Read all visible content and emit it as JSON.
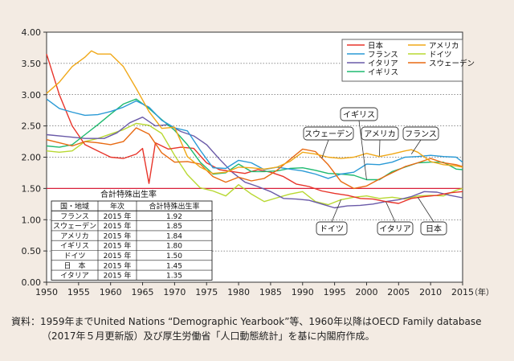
{
  "chart_data": {
    "type": "line",
    "ylim": [
      0,
      4
    ],
    "xlim": [
      1950,
      2015
    ],
    "xunit": "（年）",
    "yticks": [
      "0.00",
      "0.50",
      "1.00",
      "1.50",
      "2.00",
      "2.50",
      "3.00",
      "3.50",
      "4.00"
    ],
    "xticks": [
      "1950",
      "1955",
      "1960",
      "1965",
      "1970",
      "1975",
      "1980",
      "1985",
      "1990",
      "1995",
      "2000",
      "2005",
      "2010",
      "2015"
    ],
    "replacement_level": 1.5,
    "series": [
      {
        "key": "japan",
        "name": "日本",
        "color": "#e8342a",
        "points": [
          [
            1950,
            3.65
          ],
          [
            1952,
            3.0
          ],
          [
            1954,
            2.5
          ],
          [
            1956,
            2.2
          ],
          [
            1958,
            2.1
          ],
          [
            1960,
            2.0
          ],
          [
            1962,
            1.98
          ],
          [
            1964,
            2.05
          ],
          [
            1965,
            2.14
          ],
          [
            1966,
            1.58
          ],
          [
            1967,
            2.23
          ],
          [
            1969,
            2.13
          ],
          [
            1971,
            2.16
          ],
          [
            1973,
            2.14
          ],
          [
            1975,
            1.91
          ],
          [
            1977,
            1.8
          ],
          [
            1979,
            1.77
          ],
          [
            1981,
            1.74
          ],
          [
            1983,
            1.8
          ],
          [
            1985,
            1.76
          ],
          [
            1987,
            1.69
          ],
          [
            1989,
            1.57
          ],
          [
            1991,
            1.53
          ],
          [
            1993,
            1.46
          ],
          [
            1995,
            1.42
          ],
          [
            1997,
            1.39
          ],
          [
            1999,
            1.34
          ],
          [
            2001,
            1.33
          ],
          [
            2003,
            1.29
          ],
          [
            2005,
            1.26
          ],
          [
            2007,
            1.34
          ],
          [
            2009,
            1.37
          ],
          [
            2011,
            1.39
          ],
          [
            2013,
            1.43
          ],
          [
            2015,
            1.45
          ]
        ]
      },
      {
        "key": "france",
        "name": "フランス",
        "color": "#2a9ad6",
        "points": [
          [
            1950,
            2.93
          ],
          [
            1952,
            2.78
          ],
          [
            1954,
            2.72
          ],
          [
            1956,
            2.67
          ],
          [
            1958,
            2.68
          ],
          [
            1960,
            2.73
          ],
          [
            1962,
            2.8
          ],
          [
            1964,
            2.9
          ],
          [
            1966,
            2.8
          ],
          [
            1968,
            2.59
          ],
          [
            1970,
            2.47
          ],
          [
            1972,
            2.42
          ],
          [
            1974,
            2.11
          ],
          [
            1976,
            1.83
          ],
          [
            1978,
            1.82
          ],
          [
            1980,
            1.95
          ],
          [
            1982,
            1.91
          ],
          [
            1984,
            1.8
          ],
          [
            1986,
            1.84
          ],
          [
            1988,
            1.81
          ],
          [
            1990,
            1.78
          ],
          [
            1992,
            1.73
          ],
          [
            1994,
            1.66
          ],
          [
            1996,
            1.73
          ],
          [
            1998,
            1.76
          ],
          [
            2000,
            1.89
          ],
          [
            2002,
            1.88
          ],
          [
            2004,
            1.92
          ],
          [
            2006,
            2.0
          ],
          [
            2008,
            2.01
          ],
          [
            2010,
            2.03
          ],
          [
            2012,
            2.01
          ],
          [
            2014,
            2.0
          ],
          [
            2015,
            1.92
          ]
        ]
      },
      {
        "key": "italy",
        "name": "イタリア",
        "color": "#6a5aa8",
        "points": [
          [
            1950,
            2.36
          ],
          [
            1953,
            2.33
          ],
          [
            1956,
            2.3
          ],
          [
            1959,
            2.3
          ],
          [
            1961,
            2.39
          ],
          [
            1963,
            2.55
          ],
          [
            1965,
            2.64
          ],
          [
            1967,
            2.5
          ],
          [
            1969,
            2.52
          ],
          [
            1971,
            2.41
          ],
          [
            1973,
            2.34
          ],
          [
            1975,
            2.2
          ],
          [
            1977,
            1.97
          ],
          [
            1979,
            1.76
          ],
          [
            1981,
            1.6
          ],
          [
            1983,
            1.53
          ],
          [
            1985,
            1.45
          ],
          [
            1987,
            1.34
          ],
          [
            1989,
            1.33
          ],
          [
            1991,
            1.31
          ],
          [
            1993,
            1.25
          ],
          [
            1995,
            1.19
          ],
          [
            1997,
            1.22
          ],
          [
            1999,
            1.23
          ],
          [
            2001,
            1.25
          ],
          [
            2003,
            1.29
          ],
          [
            2005,
            1.32
          ],
          [
            2007,
            1.37
          ],
          [
            2009,
            1.45
          ],
          [
            2011,
            1.44
          ],
          [
            2013,
            1.39
          ],
          [
            2015,
            1.35
          ]
        ]
      },
      {
        "key": "sweden",
        "name": "スウェーデン",
        "color": "#e86a12",
        "points": [
          [
            1950,
            2.28
          ],
          [
            1952,
            2.23
          ],
          [
            1954,
            2.18
          ],
          [
            1956,
            2.25
          ],
          [
            1958,
            2.23
          ],
          [
            1960,
            2.2
          ],
          [
            1962,
            2.25
          ],
          [
            1964,
            2.47
          ],
          [
            1966,
            2.37
          ],
          [
            1968,
            2.07
          ],
          [
            1970,
            1.92
          ],
          [
            1972,
            1.93
          ],
          [
            1974,
            1.89
          ],
          [
            1976,
            1.69
          ],
          [
            1978,
            1.6
          ],
          [
            1980,
            1.68
          ],
          [
            1982,
            1.62
          ],
          [
            1984,
            1.66
          ],
          [
            1986,
            1.79
          ],
          [
            1988,
            1.96
          ],
          [
            1990,
            2.13
          ],
          [
            1992,
            2.09
          ],
          [
            1994,
            1.88
          ],
          [
            1996,
            1.61
          ],
          [
            1998,
            1.5
          ],
          [
            2000,
            1.54
          ],
          [
            2002,
            1.65
          ],
          [
            2004,
            1.75
          ],
          [
            2006,
            1.85
          ],
          [
            2008,
            1.91
          ],
          [
            2010,
            1.98
          ],
          [
            2012,
            1.91
          ],
          [
            2014,
            1.88
          ],
          [
            2015,
            1.85
          ]
        ]
      },
      {
        "key": "usa",
        "name": "アメリカ",
        "color": "#f0a818",
        "points": [
          [
            1950,
            3.02
          ],
          [
            1952,
            3.2
          ],
          [
            1954,
            3.45
          ],
          [
            1956,
            3.6
          ],
          [
            1957,
            3.7
          ],
          [
            1958,
            3.65
          ],
          [
            1960,
            3.65
          ],
          [
            1962,
            3.45
          ],
          [
            1964,
            3.1
          ],
          [
            1966,
            2.73
          ],
          [
            1968,
            2.46
          ],
          [
            1970,
            2.48
          ],
          [
            1972,
            2.01
          ],
          [
            1974,
            1.84
          ],
          [
            1976,
            1.74
          ],
          [
            1978,
            1.76
          ],
          [
            1980,
            1.84
          ],
          [
            1982,
            1.83
          ],
          [
            1984,
            1.81
          ],
          [
            1986,
            1.84
          ],
          [
            1988,
            1.93
          ],
          [
            1990,
            2.08
          ],
          [
            1992,
            2.05
          ],
          [
            1994,
            2.0
          ],
          [
            1996,
            1.98
          ],
          [
            1998,
            2.0
          ],
          [
            2000,
            2.06
          ],
          [
            2002,
            2.01
          ],
          [
            2004,
            2.05
          ],
          [
            2006,
            2.1
          ],
          [
            2007,
            2.12
          ],
          [
            2008,
            2.08
          ],
          [
            2010,
            1.93
          ],
          [
            2012,
            1.88
          ],
          [
            2014,
            1.86
          ],
          [
            2015,
            1.84
          ]
        ]
      },
      {
        "key": "germany",
        "name": "ドイツ",
        "color": "#b8d832",
        "points": [
          [
            1950,
            2.1
          ],
          [
            1952,
            2.08
          ],
          [
            1954,
            2.1
          ],
          [
            1956,
            2.25
          ],
          [
            1958,
            2.3
          ],
          [
            1960,
            2.37
          ],
          [
            1962,
            2.44
          ],
          [
            1964,
            2.54
          ],
          [
            1966,
            2.51
          ],
          [
            1968,
            2.38
          ],
          [
            1970,
            2.03
          ],
          [
            1972,
            1.72
          ],
          [
            1974,
            1.51
          ],
          [
            1976,
            1.46
          ],
          [
            1978,
            1.38
          ],
          [
            1980,
            1.56
          ],
          [
            1982,
            1.41
          ],
          [
            1984,
            1.29
          ],
          [
            1986,
            1.35
          ],
          [
            1988,
            1.41
          ],
          [
            1990,
            1.45
          ],
          [
            1992,
            1.29
          ],
          [
            1994,
            1.24
          ],
          [
            1996,
            1.32
          ],
          [
            1998,
            1.36
          ],
          [
            2000,
            1.38
          ],
          [
            2002,
            1.34
          ],
          [
            2004,
            1.36
          ],
          [
            2006,
            1.33
          ],
          [
            2008,
            1.38
          ],
          [
            2010,
            1.39
          ],
          [
            2012,
            1.38
          ],
          [
            2014,
            1.47
          ],
          [
            2015,
            1.5
          ]
        ]
      },
      {
        "key": "uk",
        "name": "イギリス",
        "color": "#1fba70",
        "points": [
          [
            1950,
            2.18
          ],
          [
            1952,
            2.16
          ],
          [
            1954,
            2.2
          ],
          [
            1956,
            2.36
          ],
          [
            1958,
            2.52
          ],
          [
            1960,
            2.69
          ],
          [
            1962,
            2.85
          ],
          [
            1964,
            2.93
          ],
          [
            1966,
            2.78
          ],
          [
            1968,
            2.6
          ],
          [
            1970,
            2.43
          ],
          [
            1972,
            2.2
          ],
          [
            1974,
            1.92
          ],
          [
            1976,
            1.73
          ],
          [
            1978,
            1.75
          ],
          [
            1980,
            1.89
          ],
          [
            1982,
            1.77
          ],
          [
            1984,
            1.77
          ],
          [
            1986,
            1.78
          ],
          [
            1988,
            1.82
          ],
          [
            1990,
            1.83
          ],
          [
            1992,
            1.79
          ],
          [
            1994,
            1.74
          ],
          [
            1996,
            1.73
          ],
          [
            1998,
            1.71
          ],
          [
            2000,
            1.64
          ],
          [
            2002,
            1.64
          ],
          [
            2004,
            1.77
          ],
          [
            2006,
            1.84
          ],
          [
            2008,
            1.91
          ],
          [
            2010,
            1.92
          ],
          [
            2012,
            1.92
          ],
          [
            2014,
            1.81
          ],
          [
            2015,
            1.8
          ]
        ]
      }
    ],
    "callouts": [
      {
        "key": "uk",
        "text": "イギリス",
        "pt": [
          2000,
          1.64
        ]
      },
      {
        "key": "sweden",
        "text": "スウェーデン",
        "pt": [
          1993,
          1.98
        ]
      },
      {
        "key": "usa",
        "text": "アメリカ",
        "pt": [
          2002,
          2.02
        ]
      },
      {
        "key": "france",
        "text": "フランス",
        "pt": [
          2007,
          2.05
        ]
      },
      {
        "key": "germany",
        "text": "ドイツ",
        "pt": [
          1996,
          1.32
        ]
      },
      {
        "key": "italy",
        "text": "イタリア",
        "pt": [
          2003,
          1.29
        ]
      },
      {
        "key": "japan",
        "text": "日本",
        "pt": [
          2008,
          1.36
        ]
      }
    ],
    "table": {
      "title": "合計特殊出生率",
      "headers": [
        "国・地域",
        "年次",
        "合計特殊出生率"
      ],
      "rows": [
        [
          "フランス",
          "2015 年",
          "1.92"
        ],
        [
          "スウェーデン",
          "2015 年",
          "1.85"
        ],
        [
          "アメリカ",
          "2015 年",
          "1.84"
        ],
        [
          "イギリス",
          "2015 年",
          "1.80"
        ],
        [
          "ドイツ",
          "2015 年",
          "1.50"
        ],
        [
          "日　本",
          "2015 年",
          "1.45"
        ],
        [
          "イタリア",
          "2015 年",
          "1.35"
        ]
      ]
    }
  },
  "source_note": {
    "line1": "資料：1959年までUnited Nations “Demographic Yearbook”等、1960年以降はOECD Family database",
    "line2": "（2017年５月更新版）及び厚生労働省「人口動態統計」を基に内閣府作成。"
  }
}
